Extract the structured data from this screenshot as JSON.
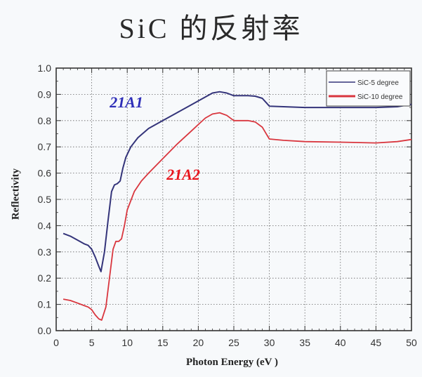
{
  "title": "SiC 的反射率",
  "chart_data": {
    "type": "line",
    "title": "SiC 的反射率",
    "xlabel": "Photon Energy (eV )",
    "ylabel": "Reflectivity",
    "xlim": [
      0,
      50
    ],
    "ylim": [
      0.0,
      1.0
    ],
    "xticks": [
      "0",
      "5",
      "10",
      "15",
      "20",
      "25",
      "30",
      "35",
      "40",
      "45",
      "50"
    ],
    "yticks": [
      "0.0",
      "0.1",
      "0.2",
      "0.3",
      "0.4",
      "0.5",
      "0.6",
      "0.7",
      "0.8",
      "0.9",
      "1.0"
    ],
    "grid": true,
    "legend_position": "upper right",
    "series": [
      {
        "name": "SiC-5 degree",
        "color": "#34347a",
        "x": [
          1,
          2,
          3,
          4,
          4.5,
          5,
          5.5,
          6,
          6.3,
          6.8,
          7.3,
          7.8,
          8.2,
          8.6,
          9.0,
          9.4,
          9.8,
          10.5,
          11.5,
          13,
          15,
          17,
          19,
          20,
          21,
          22,
          23,
          24,
          25,
          26,
          27,
          28,
          29,
          30,
          32,
          35,
          40,
          45,
          48,
          50
        ],
        "y": [
          0.37,
          0.36,
          0.345,
          0.33,
          0.325,
          0.31,
          0.28,
          0.245,
          0.225,
          0.3,
          0.42,
          0.53,
          0.555,
          0.56,
          0.57,
          0.62,
          0.66,
          0.7,
          0.735,
          0.77,
          0.8,
          0.83,
          0.86,
          0.875,
          0.89,
          0.905,
          0.91,
          0.905,
          0.895,
          0.895,
          0.895,
          0.893,
          0.885,
          0.855,
          0.853,
          0.85,
          0.85,
          0.85,
          0.853,
          0.862
        ]
      },
      {
        "name": "SiC-10 degree",
        "color": "#d9363e",
        "x": [
          1,
          2,
          3,
          4,
          4.5,
          5,
          5.5,
          6,
          6.4,
          7,
          7.5,
          8,
          8.4,
          8.8,
          9.2,
          9.6,
          10,
          11,
          12,
          13,
          15,
          17,
          19,
          20,
          21,
          22,
          23,
          24,
          25,
          26,
          27,
          28,
          29,
          30,
          32,
          35,
          40,
          45,
          48,
          50
        ],
        "y": [
          0.12,
          0.115,
          0.105,
          0.095,
          0.09,
          0.08,
          0.06,
          0.045,
          0.04,
          0.09,
          0.2,
          0.31,
          0.34,
          0.34,
          0.35,
          0.4,
          0.46,
          0.53,
          0.57,
          0.6,
          0.655,
          0.71,
          0.76,
          0.785,
          0.81,
          0.825,
          0.83,
          0.82,
          0.8,
          0.8,
          0.8,
          0.795,
          0.775,
          0.73,
          0.725,
          0.72,
          0.718,
          0.715,
          0.72,
          0.728
        ]
      }
    ],
    "annotations": [
      {
        "text": "21A1",
        "color": "#2e2eb8",
        "x": 10.5,
        "y": 0.865
      },
      {
        "text": "21A2",
        "color": "#e8141c",
        "x": 18.5,
        "y": 0.59
      }
    ]
  }
}
